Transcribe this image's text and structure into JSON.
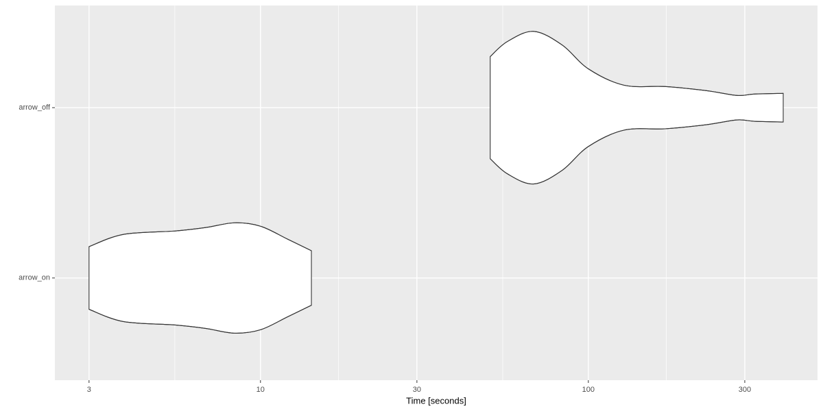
{
  "chart_data": {
    "type": "violin",
    "x_label": "Time [seconds]",
    "categories": [
      "arrow_on",
      "arrow_off"
    ],
    "x_scale": "log",
    "xlim": [
      2.36,
      500
    ],
    "xticks": [
      3,
      10,
      30,
      100,
      300
    ],
    "minor_xticks": [
      5.48,
      17.3,
      54.8,
      173
    ],
    "grid": true,
    "background": "#ebebeb",
    "grid_color": "#ffffff",
    "fill": "#ffffff",
    "stroke": "#333333",
    "violins": [
      {
        "x": [
          3.0,
          3.82,
          5.5,
          6.8,
          8.33,
          10,
          12.1,
          14.3
        ],
        "half_width": [
          0.184,
          0.256,
          0.276,
          0.296,
          0.324,
          0.304,
          0.228,
          0.16
        ]
      },
      {
        "x": [
          50.2,
          56.6,
          68.1,
          83.2,
          100,
          128.4,
          171.5,
          229,
          284,
          321,
          393
        ],
        "half_width": [
          0.3,
          0.388,
          0.448,
          0.368,
          0.228,
          0.132,
          0.124,
          0.1,
          0.072,
          0.08,
          0.084
        ]
      }
    ]
  }
}
